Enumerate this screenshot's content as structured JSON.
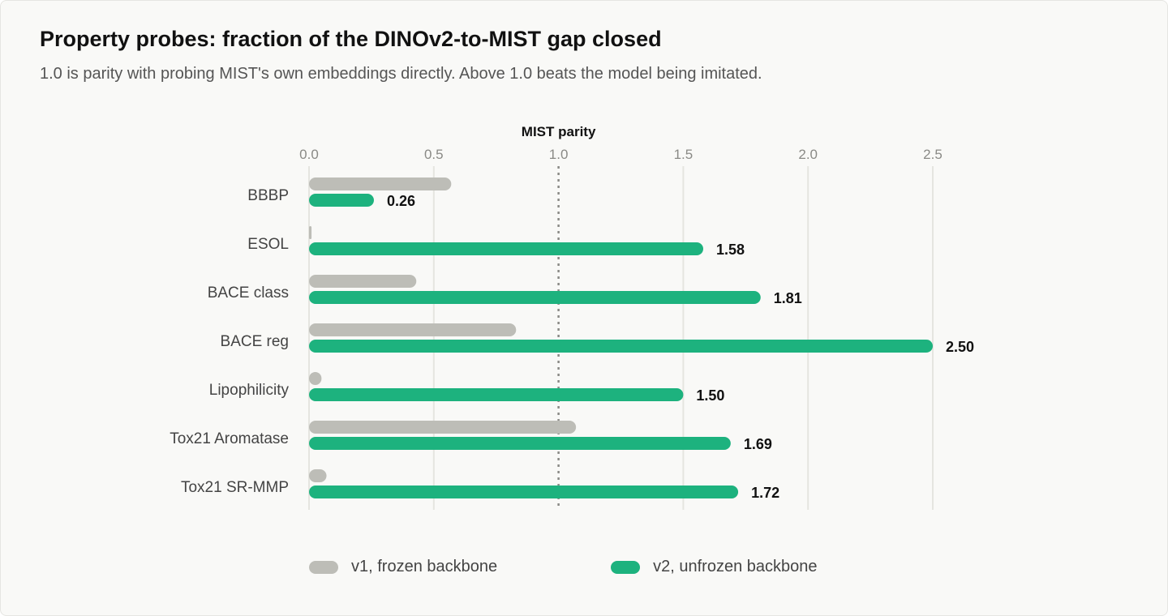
{
  "header": {
    "title": "Property probes: fraction of the DINOv2-to-MIST gap closed",
    "subtitle": "1.0 is parity with probing MIST's own embeddings directly. Above 1.0 beats the model being imitated."
  },
  "colors": {
    "v1": "#bdbdb7",
    "v2": "#1db27e",
    "reference_line": "#8a8a86",
    "grid": "#e5e5e0"
  },
  "chart_data": {
    "type": "bar",
    "orientation": "horizontal",
    "categories": [
      "BBBP",
      "ESOL",
      "BACE class",
      "BACE reg",
      "Lipophilicity",
      "Tox21 Aromatase",
      "Tox21 SR-MMP"
    ],
    "series": [
      {
        "name": "v1, frozen backbone",
        "values": [
          0.57,
          0.01,
          0.43,
          0.83,
          0.05,
          1.07,
          0.07
        ]
      },
      {
        "name": "v2, unfrozen backbone",
        "values": [
          0.26,
          1.58,
          1.81,
          2.5,
          1.5,
          1.69,
          1.72
        ]
      }
    ],
    "value_labels": [
      "0.26",
      "1.58",
      "1.81",
      "2.50",
      "1.50",
      "1.69",
      "1.72"
    ],
    "x_ticks": [
      "0.0",
      "0.5",
      "1.0",
      "1.5",
      "2.0",
      "2.5"
    ],
    "xlim": [
      0,
      2.5
    ],
    "reference_line": {
      "value": 1.0,
      "label": "MIST parity"
    },
    "grid": true,
    "legend_position": "bottom"
  }
}
